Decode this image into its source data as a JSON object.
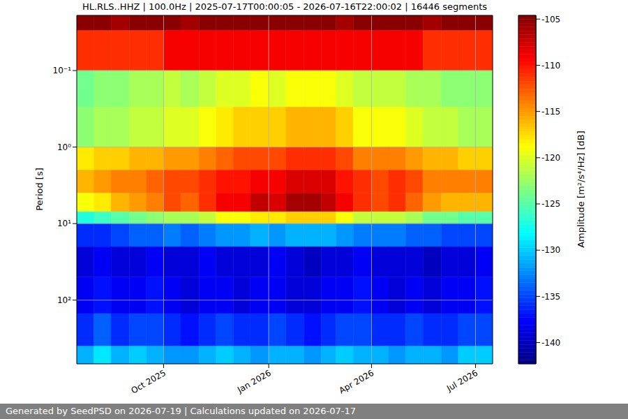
{
  "chart_data": {
    "type": "heatmap",
    "title": "HL.RLS..HHZ | 100.0Hz | 2025-07-17T00:00:05 - 2026-07-16T22:00:02 | 16446 segments",
    "ylabel": "Period [s]",
    "footer": "Generated by SeedPSD on 2026-07-19 | Calculations updated on 2026-07-17",
    "x": [
      "2025-07-17",
      "2025-08-01",
      "2025-08-16",
      "2025-09-01",
      "2025-09-16",
      "2025-10-01",
      "2025-10-16",
      "2025-11-01",
      "2025-11-16",
      "2025-12-01",
      "2025-12-16",
      "2026-01-01",
      "2026-01-16",
      "2026-02-01",
      "2026-02-16",
      "2026-03-01",
      "2026-03-16",
      "2026-04-01",
      "2026-04-16",
      "2026-05-01",
      "2026-05-16",
      "2026-06-01",
      "2026-06-16",
      "2026-07-01",
      "2026-07-16"
    ],
    "y": [
      0.019,
      0.03,
      0.1,
      0.3,
      1,
      2,
      4,
      7,
      10,
      20,
      50,
      150,
      400,
      680
    ],
    "cells": [
      [
        -105,
        -105,
        -106,
        -105,
        -105,
        -105,
        -106,
        -105,
        -105,
        -105,
        -105,
        -105,
        -105,
        -105,
        -105,
        -106,
        -105,
        -105,
        -105,
        -105,
        -106,
        -105,
        -105,
        -105
      ],
      [
        -111,
        -111,
        -111,
        -111,
        -111,
        -109,
        -109,
        -109,
        -109,
        -109,
        -109,
        -109,
        -109,
        -109,
        -109,
        -109,
        -109,
        -109,
        -109,
        -109,
        -111,
        -111,
        -111,
        -111
      ],
      [
        -124,
        -123,
        -123,
        -122,
        -122,
        -121,
        -122,
        -121,
        -120,
        -120,
        -119,
        -120,
        -119,
        -119,
        -119,
        -120,
        -121,
        -121,
        -121,
        -122,
        -122,
        -123,
        -123,
        -123
      ],
      [
        -123,
        -122,
        -122,
        -121,
        -121,
        -120,
        -120,
        -119,
        -118,
        -117,
        -117,
        -117,
        -116,
        -116,
        -116,
        -117,
        -119,
        -119,
        -119,
        -120,
        -121,
        -121,
        -122,
        -122
      ],
      [
        -118,
        -117,
        -117,
        -116,
        -116,
        -115,
        -115,
        -114,
        -113,
        -112,
        -112,
        -112,
        -111,
        -111,
        -111,
        -112,
        -114,
        -114,
        -114,
        -115,
        -116,
        -116,
        -117,
        -117
      ],
      [
        -116,
        -115,
        -114,
        -114,
        -113,
        -112,
        -112,
        -111,
        -110,
        -110,
        -109,
        -109,
        -108,
        -108,
        -108,
        -110,
        -111,
        -112,
        -111,
        -112,
        -114,
        -114,
        -114,
        -114
      ],
      [
        -119,
        -118,
        -116,
        -115,
        -114,
        -112,
        -113,
        -111,
        -109,
        -109,
        -107,
        -108,
        -106,
        -106,
        -107,
        -109,
        -111,
        -112,
        -111,
        -113,
        -115,
        -116,
        -116,
        -116
      ],
      [
        -127,
        -126,
        -125,
        -124,
        -123,
        -122,
        -122,
        -121,
        -119,
        -119,
        -118,
        -118,
        -117,
        -117,
        -117,
        -119,
        -121,
        -121,
        -121,
        -122,
        -124,
        -124,
        -125,
        -125
      ],
      [
        -136,
        -136,
        -135,
        -134,
        -134,
        -133,
        -134,
        -133,
        -132,
        -132,
        -131,
        -132,
        -131,
        -131,
        -131,
        -132,
        -133,
        -133,
        -133,
        -134,
        -134,
        -135,
        -135,
        -135
      ],
      [
        -139,
        -138,
        -139,
        -139,
        -138,
        -139,
        -139,
        -138,
        -139,
        -139,
        -139,
        -138,
        -139,
        -140,
        -139,
        -139,
        -138,
        -139,
        -139,
        -139,
        -140,
        -139,
        -139,
        -138
      ],
      [
        -138,
        -137,
        -138,
        -138,
        -137,
        -138,
        -139,
        -138,
        -138,
        -139,
        -138,
        -138,
        -139,
        -139,
        -138,
        -138,
        -137,
        -138,
        -139,
        -138,
        -139,
        -138,
        -138,
        -137
      ],
      [
        -136,
        -134,
        -136,
        -135,
        -135,
        -136,
        -137,
        -136,
        -135,
        -136,
        -136,
        -135,
        -136,
        -137,
        -136,
        -135,
        -135,
        -136,
        -136,
        -135,
        -136,
        -136,
        -135,
        -135
      ],
      [
        -131,
        -129,
        -131,
        -130,
        -131,
        -132,
        -132,
        -131,
        -130,
        -131,
        -132,
        -131,
        -131,
        -132,
        -131,
        -130,
        -131,
        -131,
        -132,
        -131,
        -131,
        -132,
        -130,
        -130
      ]
    ],
    "xlim": [
      "2025-07-17",
      "2026-07-16"
    ],
    "ylim": [
      0.019,
      680
    ],
    "xticks": [
      {
        "value": "2025-10-01",
        "label": "Oct 2025"
      },
      {
        "value": "2026-01-01",
        "label": "Jan 2026"
      },
      {
        "value": "2026-04-01",
        "label": "Apr 2026"
      },
      {
        "value": "2026-07-01",
        "label": "Jul 2026"
      }
    ],
    "yticks": [
      {
        "value": 0.1,
        "label": "10⁻¹"
      },
      {
        "value": 1,
        "label": "10⁰"
      },
      {
        "value": 10,
        "label": "10¹"
      },
      {
        "value": 100,
        "label": "10²"
      }
    ],
    "log": "y",
    "grid": true,
    "colorbar": {
      "label": "Amplitude [m²/s⁴/Hz] [dB]",
      "clim": [
        -142.3,
        -104.6
      ],
      "ticks": [
        -140,
        -135,
        -130,
        -125,
        -120,
        -115,
        -110,
        -105
      ]
    }
  }
}
